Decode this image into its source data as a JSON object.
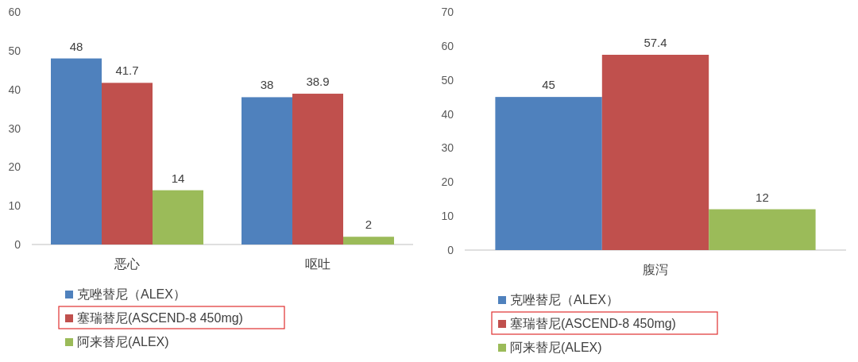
{
  "chart_data": [
    {
      "type": "bar",
      "categories": [
        "恶心",
        "呕吐"
      ],
      "series": [
        {
          "name": "克唑替尼（ALEX）",
          "color": "#4f81bd",
          "values": [
            48,
            38
          ]
        },
        {
          "name": "塞瑞替尼(ASCEND-8 450mg)",
          "color": "#c0504d",
          "values": [
            41.7,
            38.9
          ]
        },
        {
          "name": "阿来替尼(ALEX)",
          "color": "#9bbb59",
          "values": [
            14,
            2
          ]
        }
      ],
      "ylim": [
        0,
        60
      ],
      "yticks": [
        0,
        10,
        20,
        30,
        40,
        50,
        60
      ],
      "data_labels": true,
      "grid": false,
      "legend": "bottom"
    },
    {
      "type": "bar",
      "categories": [
        "腹泻"
      ],
      "series": [
        {
          "name": "克唑替尼（ALEX）",
          "color": "#4f81bd",
          "values": [
            45
          ]
        },
        {
          "name": "塞瑞替尼(ASCEND-8 450mg)",
          "color": "#c0504d",
          "values": [
            57.4
          ]
        },
        {
          "name": "阿来替尼(ALEX)",
          "color": "#9bbb59",
          "values": [
            12
          ]
        }
      ],
      "ylim": [
        0,
        70
      ],
      "yticks": [
        0,
        10,
        20,
        30,
        40,
        50,
        60,
        70
      ],
      "data_labels": true,
      "grid": false,
      "legend": "bottom"
    }
  ]
}
